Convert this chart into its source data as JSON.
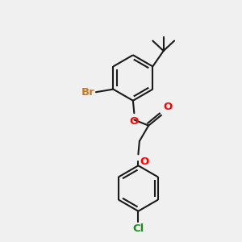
{
  "bg_color": "#f0f0f0",
  "bond_color": "#1a1a1a",
  "lw": 1.5,
  "br_color": "#cc7722",
  "cl_color": "#228B22",
  "o_color": "#ff0000",
  "font_size": 9.5,
  "fig_size": [
    3.0,
    3.0
  ],
  "dpi": 100,
  "xlim": [
    0,
    10
  ],
  "ylim": [
    0,
    10
  ]
}
